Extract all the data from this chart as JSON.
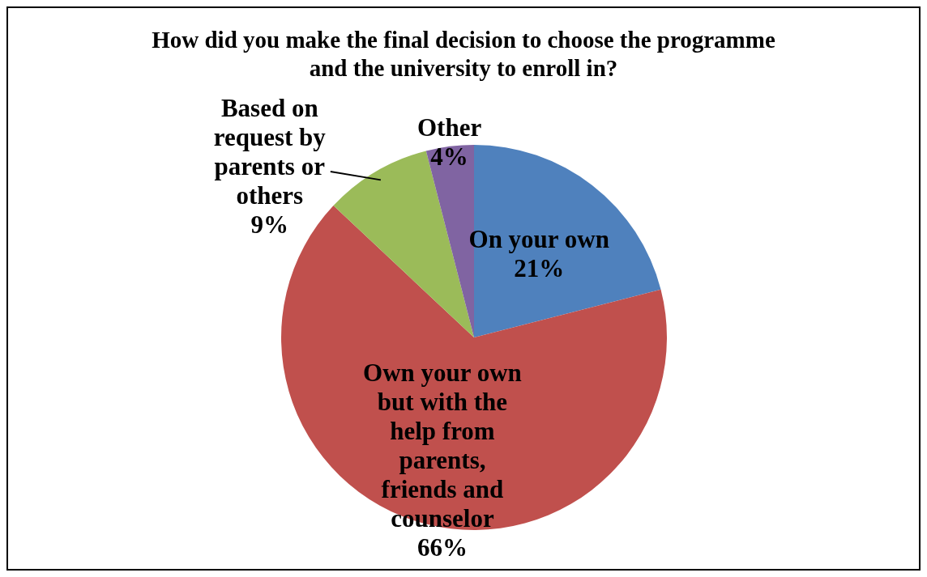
{
  "chart_data": {
    "type": "pie",
    "title": "How did you make the final decision to choose the programme and the university to enroll in?",
    "categories": [
      "On your own",
      "Own your own but with the help from parents, friends and counselor",
      "Based on request by parents or others",
      "Other"
    ],
    "values": [
      21,
      66,
      9,
      4
    ],
    "value_labels": [
      "21%",
      "66%",
      "9%",
      "4%"
    ],
    "colors": [
      "#4f81bd",
      "#c0504d",
      "#9bbb59",
      "#8064a2"
    ]
  }
}
